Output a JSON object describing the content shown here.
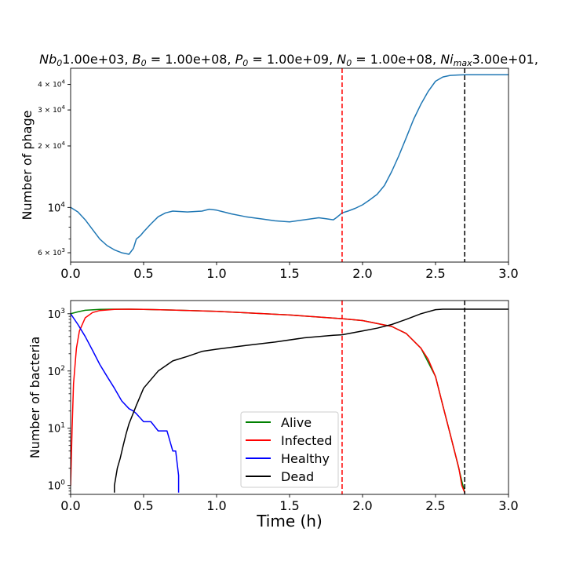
{
  "figure": {
    "suptitle_parts": [
      {
        "var": "Nb",
        "sub": "0",
        "val": "1.00e+03, "
      },
      {
        "var": "B",
        "sub": "0",
        "val": " = 1.00e+08, "
      },
      {
        "var": "P",
        "sub": "0",
        "val": " = 1.00e+09, "
      },
      {
        "var": "N",
        "sub": "0",
        "val": " = 1.00e+08, "
      },
      {
        "var": "Ni",
        "sub": "max",
        "val": "3.00e+01,"
      }
    ]
  },
  "chart_data": [
    {
      "type": "line",
      "title": "",
      "xlabel": "",
      "ylabel": "Number of phage",
      "xlim": [
        0,
        3.0
      ],
      "ylim": [
        5400,
        48000
      ],
      "yscale": "log",
      "xticks": [
        "0.0",
        "0.5",
        "1.0",
        "1.5",
        "2.0",
        "2.5",
        "3.0"
      ],
      "xtick_values": [
        0,
        0.5,
        1.0,
        1.5,
        2.0,
        2.5,
        3.0
      ],
      "yticks": [
        {
          "value": 6000,
          "base": "6 × 10",
          "exp": "3"
        },
        {
          "value": 10000,
          "base": "10",
          "exp": "4"
        },
        {
          "value": 20000,
          "base": "2 × 10",
          "exp": "4"
        },
        {
          "value": 30000,
          "base": "3 × 10",
          "exp": "4"
        },
        {
          "value": 40000,
          "base": "4 × 10",
          "exp": "4"
        }
      ],
      "vlines": [
        {
          "x": 1.86,
          "color": "#ff0000",
          "style": "dashed"
        },
        {
          "x": 2.7,
          "color": "#000000",
          "style": "dashed"
        }
      ],
      "series": [
        {
          "color": "#1f77b4",
          "x": [
            0.0,
            0.05,
            0.1,
            0.15,
            0.2,
            0.25,
            0.3,
            0.35,
            0.4,
            0.43,
            0.45,
            0.48,
            0.5,
            0.55,
            0.6,
            0.65,
            0.7,
            0.8,
            0.9,
            0.95,
            1.0,
            1.05,
            1.1,
            1.2,
            1.3,
            1.4,
            1.5,
            1.6,
            1.7,
            1.75,
            1.8,
            1.82,
            1.86,
            1.9,
            1.95,
            2.0,
            2.05,
            2.1,
            2.15,
            2.2,
            2.25,
            2.3,
            2.35,
            2.4,
            2.45,
            2.5,
            2.55,
            2.6,
            2.65,
            2.7,
            2.8,
            3.0
          ],
          "y": [
            10000,
            9500,
            8700,
            7800,
            7000,
            6500,
            6200,
            6000,
            5900,
            6300,
            7000,
            7300,
            7600,
            8300,
            9000,
            9400,
            9600,
            9500,
            9600,
            9800,
            9700,
            9500,
            9300,
            9000,
            8800,
            8600,
            8500,
            8700,
            8900,
            8800,
            8700,
            8900,
            9400,
            9600,
            9900,
            10300,
            10900,
            11600,
            12800,
            15000,
            18000,
            22000,
            27000,
            32000,
            37000,
            41500,
            43500,
            44300,
            44500,
            44600,
            44600,
            44600
          ]
        }
      ]
    },
    {
      "type": "line",
      "title": "",
      "xlabel": "Time (h)",
      "ylabel": "Number of bacteria",
      "xlim": [
        0,
        3.0
      ],
      "ylim": [
        0.7,
        1700
      ],
      "yscale": "log",
      "xticks": [
        "0.0",
        "0.5",
        "1.0",
        "1.5",
        "2.0",
        "2.5",
        "3.0"
      ],
      "xtick_values": [
        0,
        0.5,
        1.0,
        1.5,
        2.0,
        2.5,
        3.0
      ],
      "yticks": [
        {
          "value": 1,
          "base": "10",
          "exp": "0"
        },
        {
          "value": 10,
          "base": "10",
          "exp": "1"
        },
        {
          "value": 100,
          "base": "10",
          "exp": "2"
        },
        {
          "value": 1000,
          "base": "10",
          "exp": "3"
        }
      ],
      "vlines": [
        {
          "x": 1.86,
          "color": "#ff0000",
          "style": "dashed"
        },
        {
          "x": 2.7,
          "color": "#000000",
          "style": "dashed"
        }
      ],
      "legend_position": "lower-center",
      "series": [
        {
          "name": "Alive",
          "color": "#008000",
          "x": [
            0.0,
            0.05,
            0.1,
            0.2,
            0.3,
            0.4,
            0.5,
            0.7,
            1.0,
            1.5,
            1.86,
            2.0,
            2.2,
            2.3,
            2.4,
            2.5,
            2.55,
            2.6,
            2.65,
            2.68,
            2.7
          ],
          "y": [
            1000,
            1080,
            1150,
            1190,
            1200,
            1200,
            1190,
            1160,
            1100,
            950,
            820,
            760,
            600,
            450,
            250,
            80,
            25,
            8,
            2.5,
            1.2,
            0.75
          ]
        },
        {
          "name": "Infected",
          "color": "#ff0000",
          "x": [
            0.0,
            0.01,
            0.02,
            0.04,
            0.06,
            0.1,
            0.15,
            0.2,
            0.3,
            0.4,
            0.5,
            0.7,
            1.0,
            1.5,
            1.86,
            2.0,
            2.2,
            2.3,
            2.4,
            2.45,
            2.5,
            2.55,
            2.6,
            2.63,
            2.66,
            2.68,
            2.7
          ],
          "y": [
            1,
            10,
            60,
            250,
            500,
            850,
            1050,
            1140,
            1190,
            1200,
            1190,
            1160,
            1100,
            950,
            820,
            760,
            600,
            450,
            250,
            160,
            80,
            25,
            8,
            4,
            2,
            1,
            0.75
          ]
        },
        {
          "name": "Healthy",
          "color": "#0000ff",
          "x": [
            0.0,
            0.05,
            0.1,
            0.15,
            0.2,
            0.25,
            0.3,
            0.35,
            0.4,
            0.43,
            0.45,
            0.5,
            0.55,
            0.6,
            0.63,
            0.66,
            0.7,
            0.72,
            0.74,
            0.74
          ],
          "y": [
            1000,
            650,
            400,
            230,
            130,
            80,
            50,
            30,
            22,
            20,
            18,
            13,
            13,
            9,
            9,
            9,
            4,
            4,
            1.5,
            0.75
          ]
        },
        {
          "name": "Dead",
          "color": "#000000",
          "x": [
            0.3,
            0.3,
            0.32,
            0.34,
            0.36,
            0.38,
            0.4,
            0.45,
            0.5,
            0.6,
            0.7,
            0.8,
            0.9,
            1.0,
            1.2,
            1.4,
            1.6,
            1.8,
            1.86,
            2.0,
            2.1,
            2.2,
            2.3,
            2.4,
            2.5,
            2.55,
            2.6,
            2.7,
            3.0
          ],
          "y": [
            0.75,
            1,
            2,
            3,
            5,
            8,
            12,
            25,
            50,
            100,
            150,
            180,
            220,
            240,
            280,
            320,
            380,
            420,
            430,
            500,
            560,
            650,
            800,
            1000,
            1180,
            1200,
            1200,
            1200,
            1200
          ]
        }
      ]
    }
  ]
}
